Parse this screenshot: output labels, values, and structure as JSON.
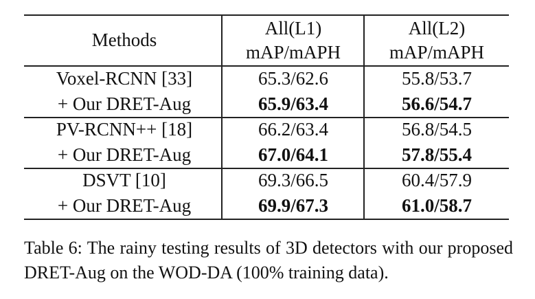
{
  "table": {
    "header": {
      "methods": "Methods",
      "columns": [
        [
          "All(L1)",
          "mAP/mAPH"
        ],
        [
          "All(L2)",
          "mAP/mAPH"
        ]
      ]
    },
    "rows": [
      {
        "method": "Voxel-RCNN [33]",
        "cells": [
          "65.3/62.6",
          "55.8/53.7"
        ],
        "bold": false
      },
      {
        "method": "+ Our DRET-Aug",
        "cells": [
          "65.9/63.4",
          "56.6/54.7"
        ],
        "bold": true
      },
      {
        "method": "PV-RCNN++ [18]",
        "cells": [
          "66.2/63.4",
          "56.8/54.5"
        ],
        "bold": false
      },
      {
        "method": "+ Our DRET-Aug",
        "cells": [
          "67.0/64.1",
          "57.8/55.4"
        ],
        "bold": true
      },
      {
        "method": "DSVT [10]",
        "cells": [
          "69.3/66.5",
          "60.4/57.9"
        ],
        "bold": false
      },
      {
        "method": "+ Our DRET-Aug",
        "cells": [
          "69.9/67.3",
          "61.0/58.7"
        ],
        "bold": true
      }
    ]
  },
  "caption": "Table 6: The rainy testing results of 3D detectors with our proposed DRET-Aug on the WOD-DA (100% training data)."
}
